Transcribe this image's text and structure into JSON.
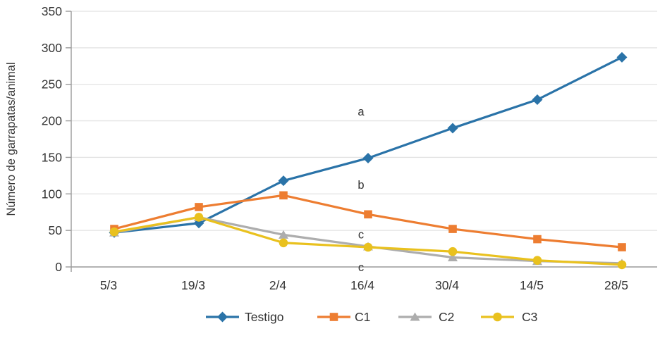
{
  "chart_data": {
    "type": "line",
    "title": "",
    "xlabel": "",
    "ylabel": "Número de garrapatas/animal",
    "categories": [
      "5/3",
      "19/3",
      "2/4",
      "16/4",
      "30/4",
      "14/5",
      "28/5"
    ],
    "series": [
      {
        "name": "Testigo",
        "marker": "diamond",
        "color": "#2A73A8",
        "values": [
          47,
          60,
          118,
          149,
          190,
          229,
          287
        ]
      },
      {
        "name": "C1",
        "marker": "square",
        "color": "#ED7D31",
        "values": [
          52,
          82,
          98,
          72,
          52,
          38,
          27
        ]
      },
      {
        "name": "C2",
        "marker": "triangle",
        "color": "#ADADAD",
        "values": [
          47,
          68,
          44,
          28,
          13,
          8,
          5
        ]
      },
      {
        "name": "C3",
        "marker": "circle",
        "color": "#E9C11E",
        "values": [
          48,
          68,
          33,
          27,
          21,
          9,
          3
        ]
      }
    ],
    "ylim": [
      0,
      350
    ],
    "ytick_step": 50,
    "yticks": [
      0,
      50,
      100,
      150,
      200,
      250,
      300,
      350
    ],
    "grid": true,
    "legend_position": "bottom",
    "annotations": [
      {
        "text": "a",
        "category_index": 3,
        "y": 213
      },
      {
        "text": "b",
        "category_index": 3,
        "y": 113
      },
      {
        "text": "c",
        "category_index": 3,
        "y": 45
      },
      {
        "text": "c",
        "category_index": 3,
        "y": 0
      }
    ]
  },
  "colors": {
    "grid": "#E2E2E2",
    "axis": "#9A9A9A",
    "tick_text": "#2E2E2E",
    "annotation_text": "#3A3A3A",
    "background": "#FFFFFF"
  }
}
